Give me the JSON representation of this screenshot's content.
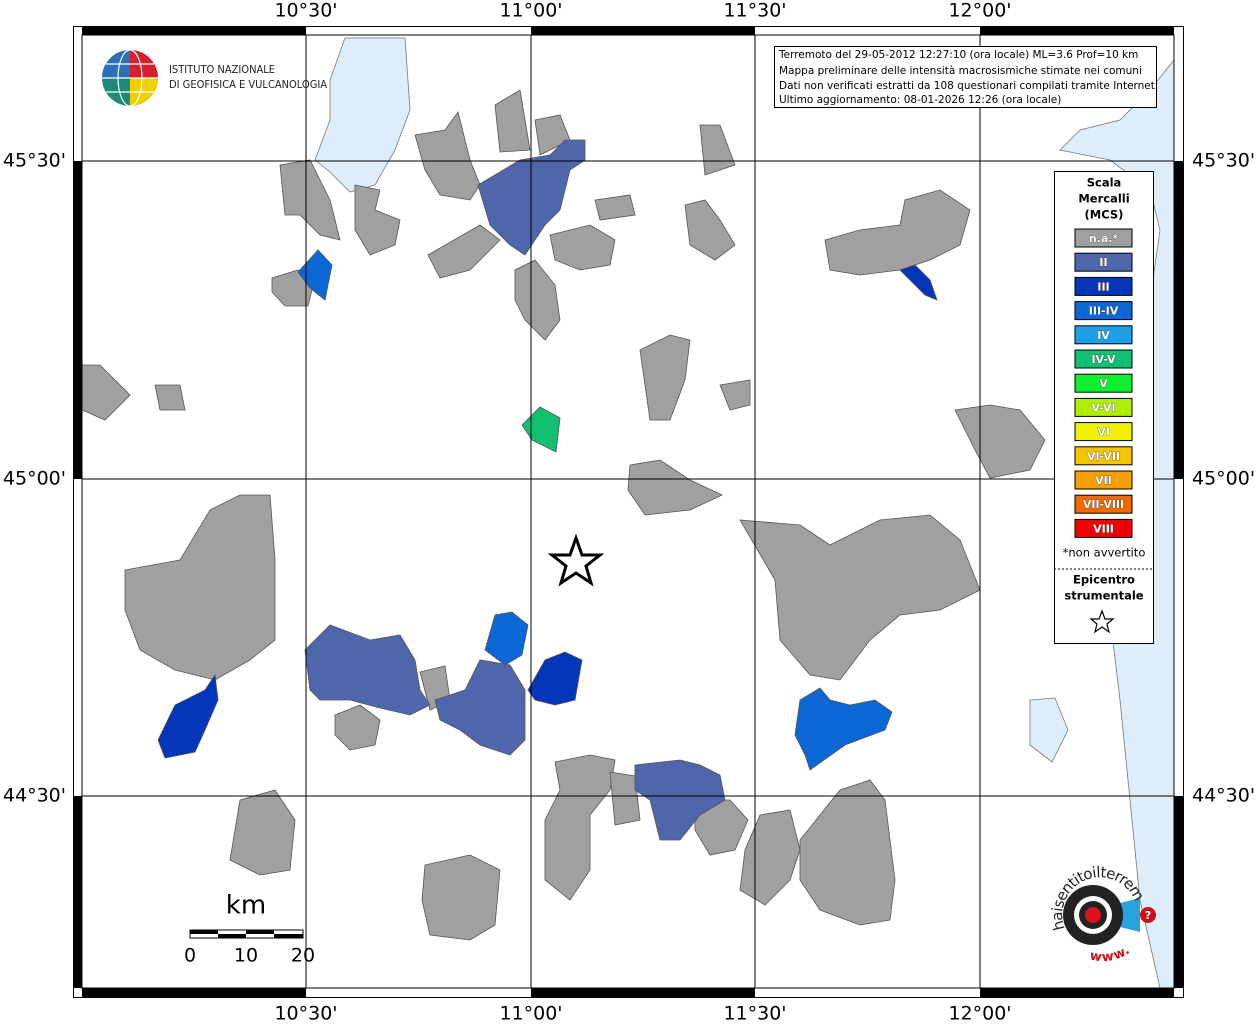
{
  "map": {
    "graticule": {
      "longitude_labels": [
        "10°30'",
        "11°00'",
        "11°30'",
        "12°00'"
      ],
      "latitude_labels": [
        "45°30'",
        "45°00'",
        "44°30'"
      ]
    },
    "info_box": {
      "lines": [
        "Terremoto del 29-05-2012 12:27:10 (ora locale) ML=3.6 Prof=10 km",
        "Mappa preliminare delle intensità macrosismiche stimate nei comuni",
        "Dati non verificati estratti da 108 questionari compilati tramite Internet.",
        "Ultimo aggiornamento: 08-01-2026 12:26 (ora locale)"
      ]
    },
    "logo_ingv": {
      "lines": [
        "ISTITUTO NAZIONALE",
        "DI GEOFISICA E VULCANOLOGIA"
      ]
    },
    "legend": {
      "title_lines": [
        "Scala",
        "Mercalli",
        "(MCS)"
      ],
      "items": [
        {
          "label": "n.a.*",
          "color": "#a0a0a0"
        },
        {
          "label": "II",
          "color": "#4f66ad"
        },
        {
          "label": "III",
          "color": "#0535b8"
        },
        {
          "label": "III-IV",
          "color": "#0b66d6"
        },
        {
          "label": "IV",
          "color": "#1e9fe8"
        },
        {
          "label": "IV-V",
          "color": "#10c070"
        },
        {
          "label": "V",
          "color": "#10ee30"
        },
        {
          "label": "V-VI",
          "color": "#b0ee00"
        },
        {
          "label": "VI",
          "color": "#f2f200"
        },
        {
          "label": "VI-VII",
          "color": "#f5c400"
        },
        {
          "label": "VII",
          "color": "#f5a000"
        },
        {
          "label": "VII-VIII",
          "color": "#f26a00"
        },
        {
          "label": "VIII",
          "color": "#f00000"
        }
      ],
      "note": "*non avvertito",
      "epicenter_lines": [
        "Epicentro",
        "strumentale"
      ]
    },
    "scale_bar": {
      "unit": "km",
      "ticks": [
        "0",
        "10",
        "20"
      ]
    },
    "logo_hsit": {
      "text": "haisentitoilterremoto.it",
      "www": "www.",
      "question": "?"
    }
  }
}
